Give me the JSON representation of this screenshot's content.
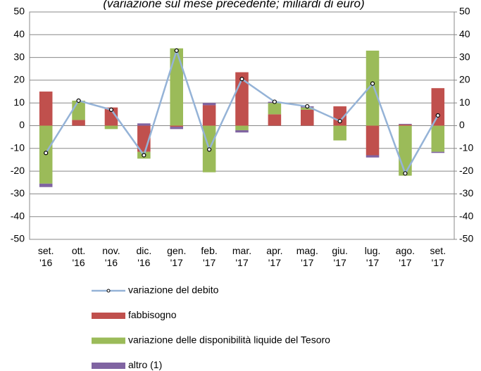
{
  "chart_data": {
    "type": "bar",
    "stacked": true,
    "title": "(variazione sul mese precedente; miliardi di euro)",
    "categories": [
      [
        "set.",
        "'16"
      ],
      [
        "ott.",
        "'16"
      ],
      [
        "nov.",
        "'16"
      ],
      [
        "dic.",
        "'16"
      ],
      [
        "gen.",
        "'17"
      ],
      [
        "feb.",
        "'17"
      ],
      [
        "mar.",
        "'17"
      ],
      [
        "apr.",
        "'17"
      ],
      [
        "mag.",
        "'17"
      ],
      [
        "giu.",
        "'17"
      ],
      [
        "lug.",
        "'17"
      ],
      [
        "ago.",
        "'17"
      ],
      [
        "set.",
        "'17"
      ]
    ],
    "series": [
      {
        "name": "variazione del debito",
        "type": "line",
        "color": "#95b3d7",
        "values": [
          -12,
          11,
          7,
          -13,
          33,
          -10.5,
          20.5,
          10.5,
          8.5,
          2,
          18.5,
          -21,
          4.5
        ]
      },
      {
        "name": "fabbisogno",
        "type": "bar",
        "color": "#c0504d",
        "values": [
          15,
          2.5,
          8,
          -11.5,
          -0.5,
          9,
          23.5,
          5,
          7,
          8.5,
          -13,
          0.5,
          16.5
        ]
      },
      {
        "name": "variazione delle disponibilità liquide del Tesoro",
        "type": "bar",
        "color": "#9bbb59",
        "values": [
          -25.5,
          8.5,
          -1.5,
          -3,
          34,
          -20.5,
          -2,
          5,
          1,
          -6.5,
          33,
          -22,
          -11.5
        ]
      },
      {
        "name": "altro (1)",
        "type": "bar",
        "color": "#8064a2",
        "values": [
          -1.5,
          0,
          0,
          1,
          -1,
          1,
          -1,
          0.5,
          0.5,
          0,
          -1,
          0.3,
          -0.5
        ]
      }
    ],
    "ylim": [
      -50,
      50
    ],
    "yticks": [
      -50,
      -40,
      -30,
      -20,
      -10,
      0,
      10,
      20,
      30,
      40,
      50
    ],
    "y2lim": [
      -50,
      50
    ],
    "y2ticks": [
      -50,
      -40,
      -30,
      -20,
      -10,
      0,
      10,
      20,
      30,
      40,
      50
    ],
    "grid": true
  }
}
